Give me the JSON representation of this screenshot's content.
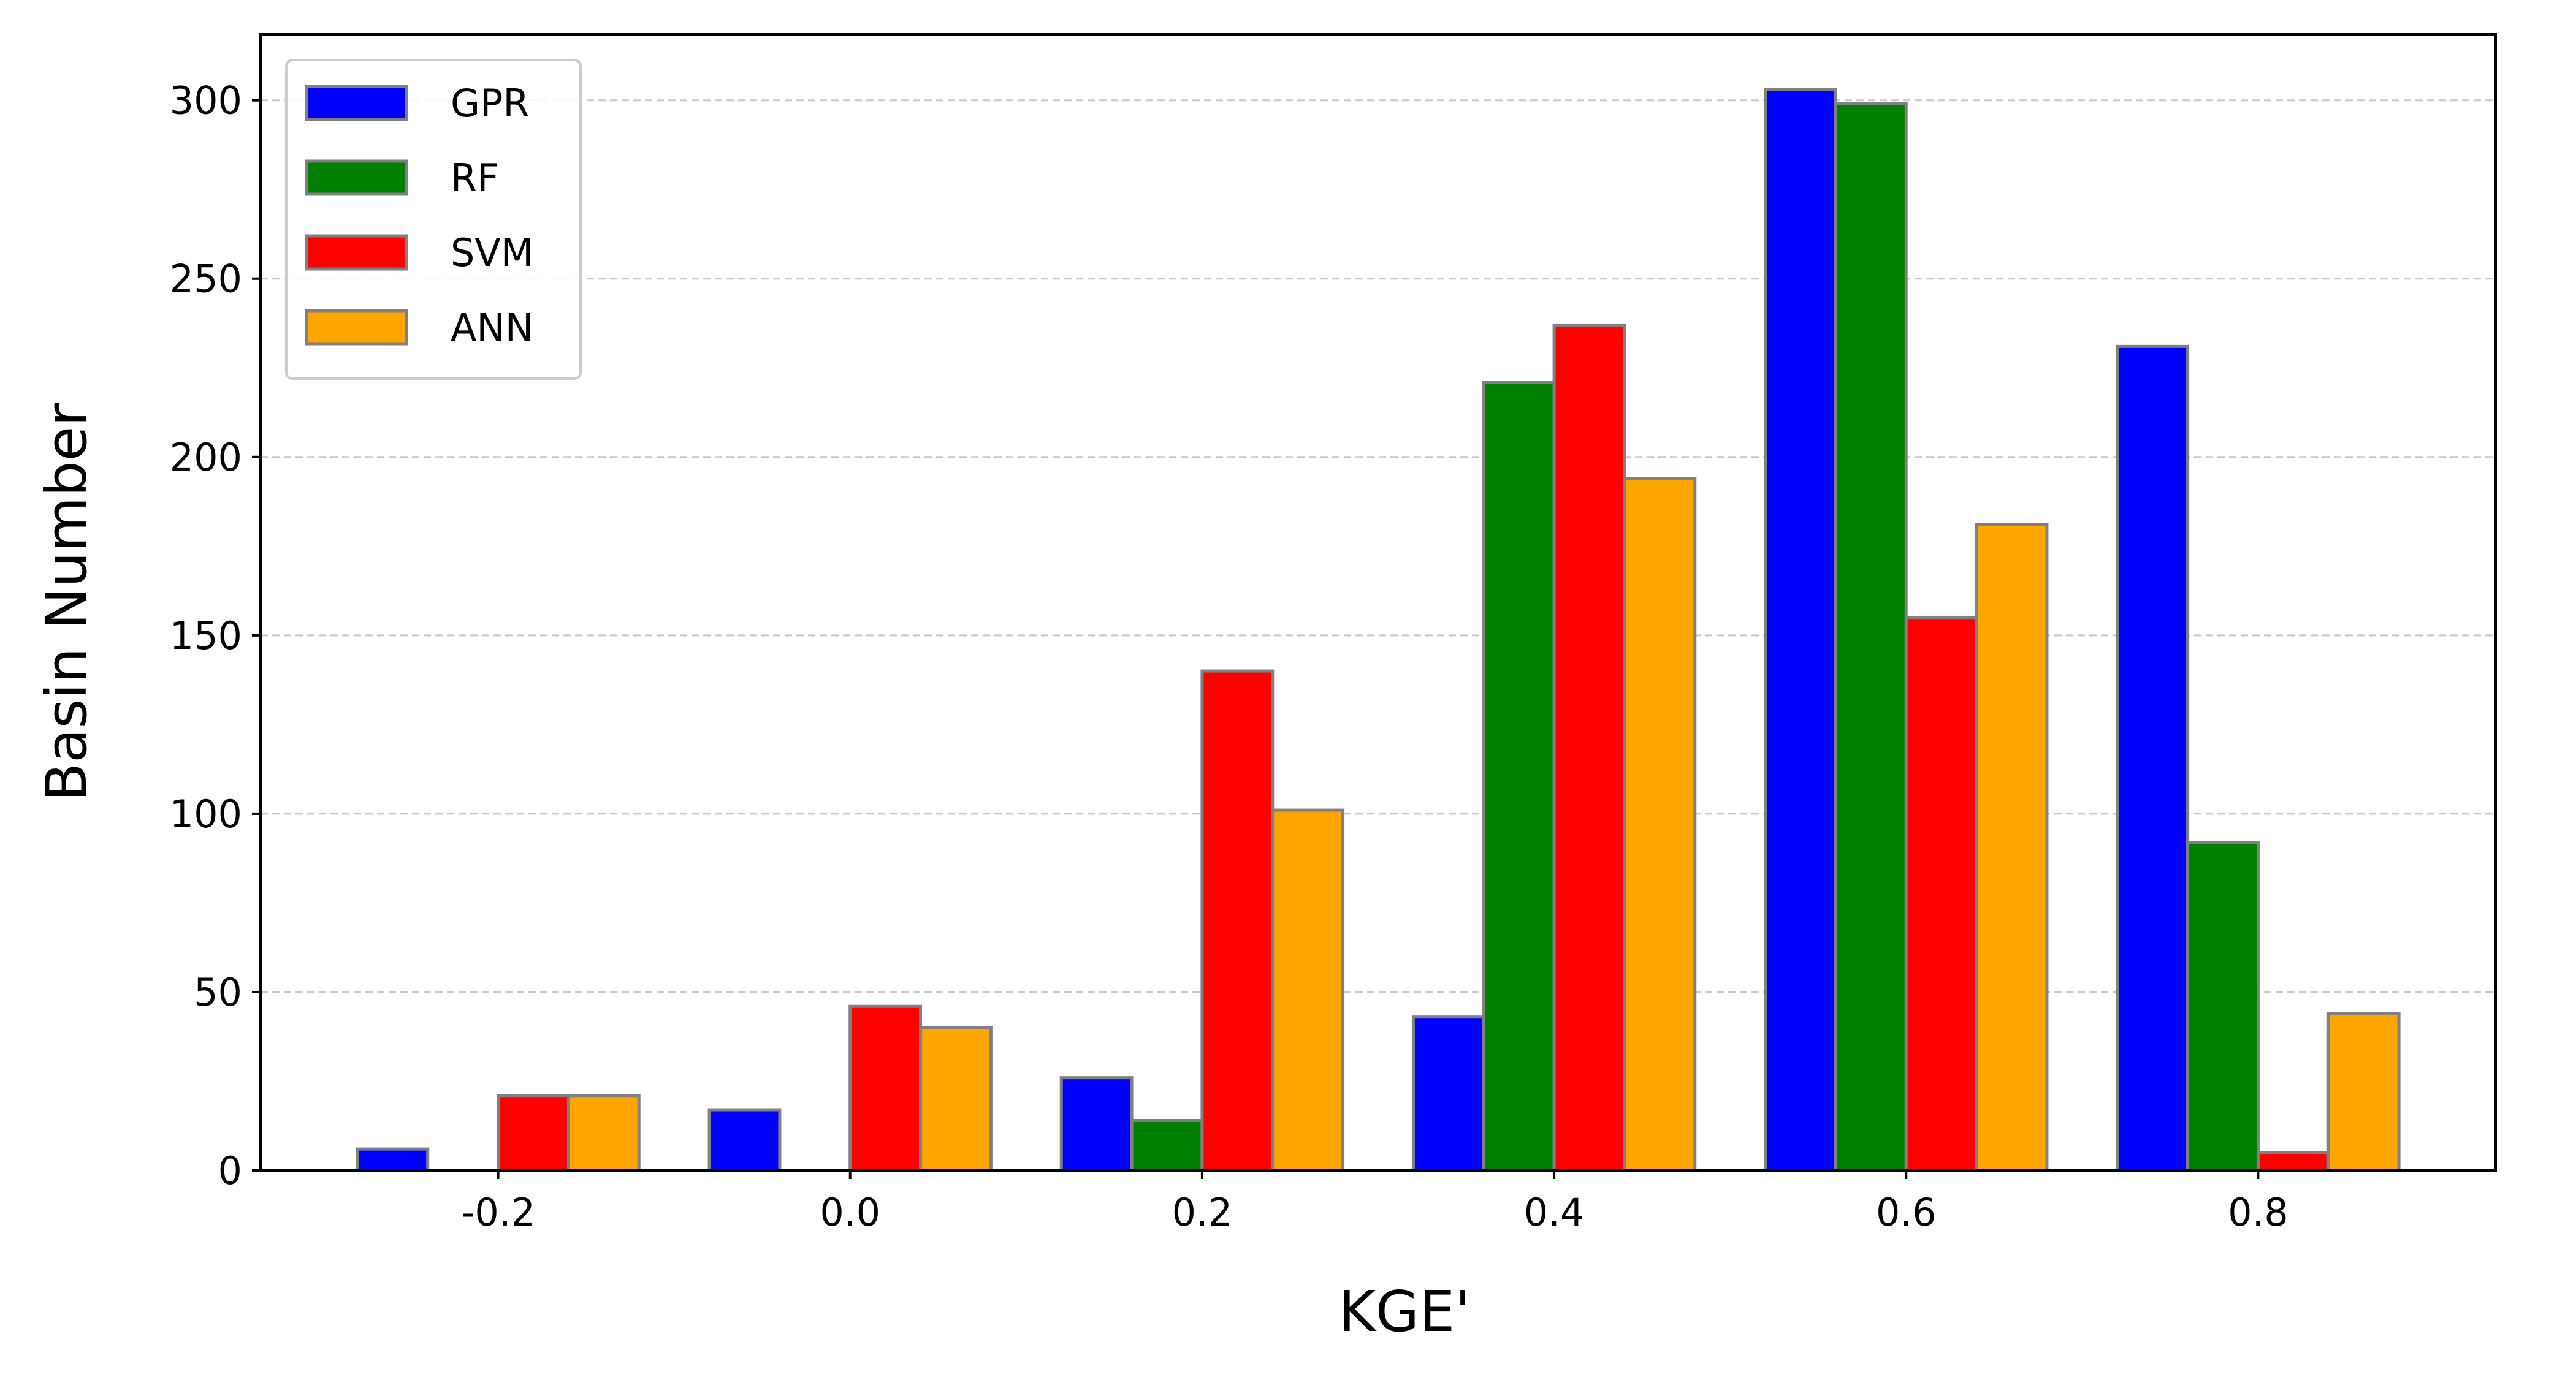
{
  "chart_data": {
    "type": "bar",
    "title": "",
    "xlabel": "KGE'",
    "ylabel": "Basin Number",
    "categories": [
      "-0.2",
      "0.0",
      "0.2",
      "0.4",
      "0.6",
      "0.8"
    ],
    "x": [
      -0.2,
      0.0,
      0.2,
      0.4,
      0.6,
      0.8
    ],
    "bar_width": 0.04,
    "series": [
      {
        "name": "GPR",
        "color": "#0000ff",
        "values": [
          6,
          17,
          26,
          43,
          303,
          231
        ]
      },
      {
        "name": "RF",
        "color": "#008000",
        "values": [
          0,
          0,
          14,
          221,
          299,
          92
        ]
      },
      {
        "name": "SVM",
        "color": "#ff0000",
        "values": [
          21,
          46,
          140,
          237,
          155,
          5
        ]
      },
      {
        "name": "ANN",
        "color": "#ffa500",
        "values": [
          21,
          40,
          101,
          194,
          181,
          44
        ]
      }
    ],
    "xlim": [
      -0.335,
      0.935
    ],
    "ylim": [
      0,
      318.5
    ],
    "yticks": [
      0,
      50,
      100,
      150,
      200,
      250,
      300
    ],
    "xtick_labels": [
      "-0.2",
      "0.0",
      "0.2",
      "0.4",
      "0.6",
      "0.8"
    ],
    "ytick_labels": [
      "0",
      "50",
      "100",
      "150",
      "200",
      "250",
      "300"
    ],
    "grid": "y-dashed",
    "legend_position": "top-left",
    "bar_edge_color": "#808080"
  }
}
